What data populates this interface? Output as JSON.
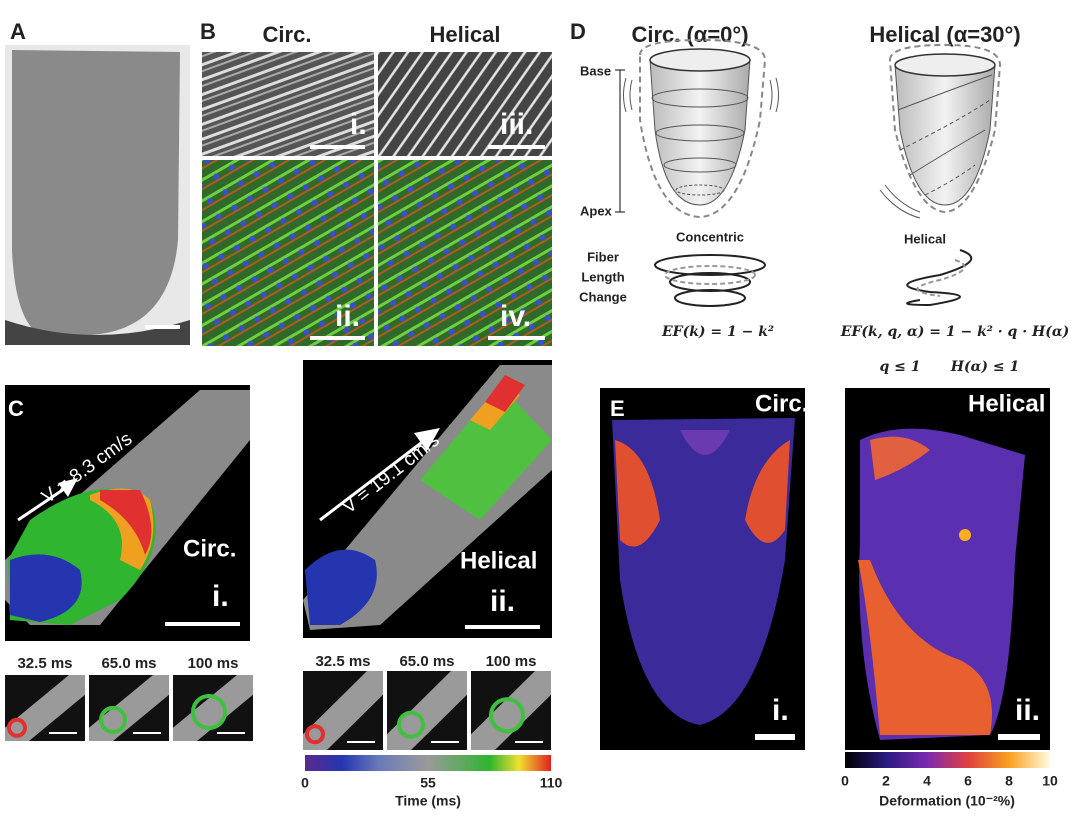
{
  "panel_a": {
    "label": "A"
  },
  "panel_b": {
    "label": "B",
    "col_titles": [
      "Circ.",
      "Helical"
    ],
    "subpanels": [
      "i.",
      "ii.",
      "iii.",
      "iv."
    ]
  },
  "panel_c": {
    "label": "C",
    "maps": [
      {
        "velocity": "V = 8.3 cm/s",
        "name": "Circ.",
        "tag": "i."
      },
      {
        "velocity": "V = 19.1 cm/s",
        "name": "Helical",
        "tag": "ii."
      }
    ],
    "frame_times": [
      "32.5 ms",
      "65.0 ms",
      "100 ms"
    ],
    "colorbar": {
      "ticks": [
        0,
        55,
        110
      ],
      "label": "Time (ms)"
    }
  },
  "panel_d": {
    "label": "D",
    "titles": [
      "Circ. (α=0°)",
      "Helical (α=30°)"
    ],
    "axis_top": "Base",
    "axis_bottom": "Apex",
    "patterns": [
      "Concentric",
      "Helical"
    ],
    "row_label": [
      "Fiber",
      "Length",
      "Change"
    ],
    "equations": [
      "EF(k) = 1 − k²",
      "EF(k, q, α) = 1 − k² · q · H(α)"
    ],
    "constraints": [
      "q ≤ 1",
      "H(α) ≤ 1"
    ]
  },
  "panel_e": {
    "label": "E",
    "maps": [
      {
        "name": "Circ.",
        "tag": "i."
      },
      {
        "name": "Helical",
        "tag": "ii."
      }
    ],
    "colorbar": {
      "ticks": [
        0,
        2,
        4,
        6,
        8,
        10
      ],
      "label": "Deformation (10⁻²%)"
    }
  }
}
